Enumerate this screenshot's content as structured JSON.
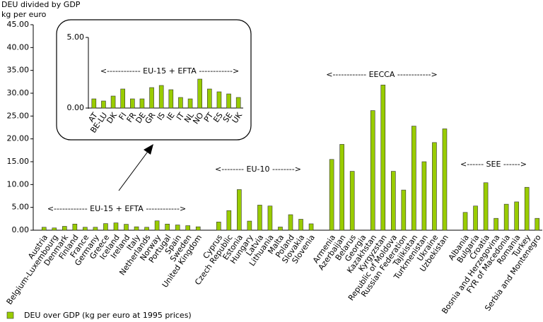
{
  "chart_data": [
    {
      "type": "bar",
      "y_title": [
        "DEU divided by GDP",
        "kg per euro"
      ],
      "categories": [
        "Austria",
        "Belgium-Luxembourg",
        "Denmark",
        "Finland",
        "France",
        "Germany",
        "Greece",
        "Iceland",
        "Ireland",
        "Italy",
        "Netherlands",
        "Norway",
        "Portugal",
        "Spain",
        "Sweden",
        "United Kingdom",
        null,
        "Cyprus",
        "Czech Republic",
        "Estonia",
        "Hungary",
        "Latvia",
        "Lithuania",
        "Malta",
        "Poland",
        "Slovakia",
        "Slovenia",
        null,
        "Armenia",
        "Azerbaijan",
        "Belarus",
        "Georgia",
        "Kazakhstan",
        "Kyrgyzstan",
        "Republic of Moldova",
        "Russian Federation",
        "Tajikistan",
        "Turkmenistan",
        "Ukraine",
        "Uzbekistan",
        null,
        "Albania",
        "Bulgaria",
        "Croatia",
        "Bosnia and Herzegovina",
        "FYR of Macedonia",
        "Romania",
        "Turkey",
        "Serbia and Montenegro"
      ],
      "series": [
        {
          "name": "DEU over GDP (kg per euro at 1995 prices)",
          "color": "#99cc00",
          "values": [
            0.65,
            0.5,
            0.85,
            1.35,
            0.65,
            0.65,
            1.45,
            1.6,
            1.3,
            0.75,
            0.65,
            2.05,
            1.35,
            1.15,
            1.0,
            0.75,
            null,
            1.8,
            4.3,
            8.9,
            2.0,
            5.5,
            5.3,
            0.7,
            3.4,
            2.4,
            1.4,
            null,
            15.5,
            18.8,
            12.9,
            null,
            26.2,
            31.8,
            12.9,
            8.8,
            22.8,
            15.0,
            19.2,
            22.2,
            null,
            3.9,
            5.3,
            10.4,
            2.6,
            5.7,
            6.2,
            9.4,
            2.6
          ]
        }
      ],
      "ylim": [
        0,
        45
      ],
      "yticks": [
        {
          "value": 0,
          "label": "0.00"
        },
        {
          "value": 5,
          "label": "5.00"
        },
        {
          "value": 10,
          "label": "10.00"
        },
        {
          "value": 15,
          "label": "15.00"
        },
        {
          "value": 20,
          "label": "20.00"
        },
        {
          "value": 25,
          "label": "25.00"
        },
        {
          "value": 30,
          "label": "30.00"
        },
        {
          "value": 35,
          "label": "35.00"
        },
        {
          "value": 40,
          "label": "40.00"
        },
        {
          "value": 45,
          "label": "45.00"
        }
      ],
      "grid": false,
      "annotations": [
        "<------------ EU-15 + EFTA ------------>",
        "<-------- EU-10 -------->",
        "<------------ EECCA ------------>",
        "<------ SEE ------>"
      ],
      "legend": "bottom-left"
    },
    {
      "type": "bar",
      "categories": [
        "AT",
        "BE-LU",
        "DK",
        "FI",
        "FR",
        "DE",
        "GR",
        "IS",
        "IE",
        "IT",
        "NL",
        "NO",
        "PT",
        "ES",
        "SE",
        "UK"
      ],
      "series": [
        {
          "color": "#99cc00",
          "values": [
            0.65,
            0.5,
            0.85,
            1.35,
            0.65,
            0.65,
            1.45,
            1.6,
            1.3,
            0.75,
            0.65,
            2.05,
            1.35,
            1.15,
            1.0,
            0.75
          ]
        }
      ],
      "ylim": [
        0,
        5
      ],
      "yticks": [
        {
          "value": 0,
          "label": "0.00"
        },
        {
          "value": 5,
          "label": "5.00"
        }
      ],
      "annotations": [
        "<------------ EU-15 + EFTA ------------>"
      ]
    }
  ]
}
